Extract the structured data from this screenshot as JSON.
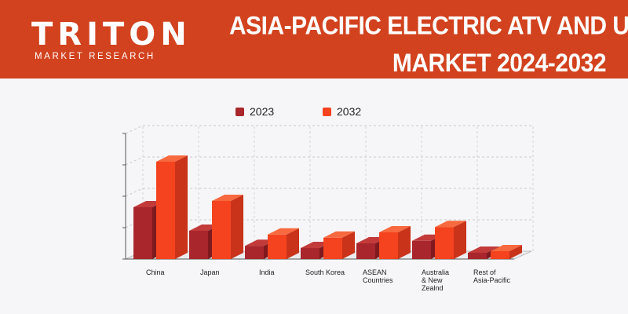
{
  "header": {
    "logo_text": "TRITON",
    "logo_subtext": "MARKET RESEARCH",
    "title_line1": "ASIA-PACIFIC ELECTRIC ATV AND UTV",
    "title_line2": "MARKET 2024-2032"
  },
  "colors": {
    "header_bg": "#d2421e",
    "series_2023": "#a8262c",
    "series_2032": "#f4431e"
  },
  "chart_data": {
    "type": "bar",
    "title": "",
    "xlabel": "",
    "ylabel": "",
    "ylim": [
      0,
      4
    ],
    "grid": true,
    "legend_position": "top",
    "categories": [
      "China",
      "Japan",
      "India",
      "South Korea",
      "ASEAN Countries",
      "Australia & New Zealnd",
      "Rest of Asia-Pacific"
    ],
    "category_lines": [
      [
        "China"
      ],
      [
        "Japan"
      ],
      [
        "India"
      ],
      [
        "South Korea"
      ],
      [
        "ASEAN",
        "Countries"
      ],
      [
        "Australia",
        "& New",
        "Zealnd"
      ],
      [
        "Rest of",
        "Asia-Pacific"
      ]
    ],
    "series": [
      {
        "name": "2023",
        "values": [
          1.65,
          0.9,
          0.42,
          0.35,
          0.5,
          0.58,
          0.2
        ]
      },
      {
        "name": "2032",
        "values": [
          3.1,
          1.85,
          0.78,
          0.68,
          0.85,
          1.02,
          0.25
        ]
      }
    ]
  }
}
